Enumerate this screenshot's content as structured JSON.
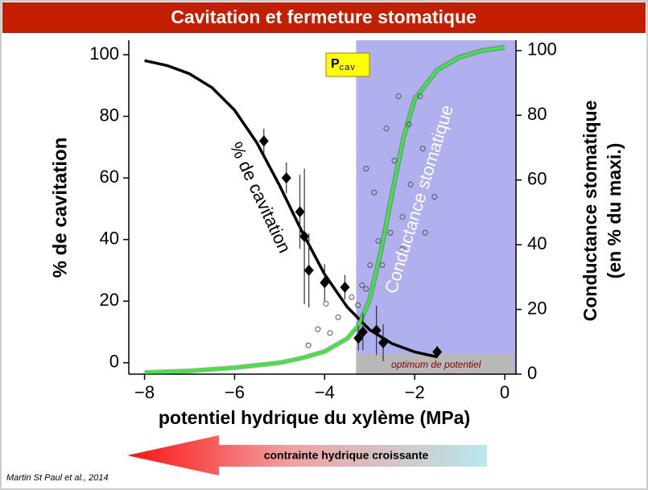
{
  "chart_data": {
    "type": "line",
    "title": "Cavitation et fermeture stomatique",
    "xlabel": "potentiel hydrique du xylème (MPa)",
    "ylabel": "% de cavitation",
    "y2label": [
      "Conductance stomatique",
      "(en % du maxi.)"
    ],
    "xlim": [
      -8.35,
      0.25
    ],
    "ylim": [
      -3.7,
      104.7
    ],
    "y2lim": [
      0,
      103.2
    ],
    "xticks": [
      {
        "value": -8,
        "label": "−8"
      },
      {
        "value": -6,
        "label": "−6"
      },
      {
        "value": -4,
        "label": "−4"
      },
      {
        "value": -2,
        "label": "−2"
      },
      0
    ],
    "yticks": [
      0,
      20,
      40,
      60,
      80,
      100
    ],
    "y2ticks": [
      0,
      20,
      40,
      60,
      80,
      100
    ],
    "shaded_region": {
      "x": [
        -3.3,
        0.25
      ],
      "color": "#b0b0ee"
    },
    "series": [
      {
        "type": "line",
        "color": "#000000",
        "axis": "y",
        "x": [
          -8,
          -7.5,
          -7,
          -6.5,
          -6,
          -5.5,
          -5,
          -4.5,
          -4,
          -3.5,
          -3,
          -2.5,
          -2,
          -1.5
        ],
        "values": [
          98.1,
          96.5,
          93.8,
          89.3,
          82,
          71.3,
          57.5,
          42.5,
          28.7,
          18.1,
          10.7,
          6.2,
          3.5,
          1.9
        ]
      },
      {
        "type": "line",
        "color": "#33ee33",
        "axis": "y2",
        "x": [
          -8,
          -7,
          -6,
          -5,
          -4.5,
          -4,
          -3.5,
          -3.25,
          -3,
          -2.75,
          -2.5,
          -2.25,
          -2,
          -1.5,
          -1,
          -0.5,
          0
        ],
        "values": [
          0.5,
          1,
          2,
          3.5,
          5,
          7,
          11,
          15,
          23,
          38,
          56,
          73,
          85,
          94,
          98,
          100,
          101
        ]
      },
      {
        "type": "scatter",
        "marker": "diamond",
        "color": "#000000",
        "axis": "y",
        "x": [
          -5.35,
          -4.85,
          -4.55,
          -4.45,
          -4.35,
          -4.0,
          -3.55,
          -3.25,
          -3.15,
          -2.85,
          -2.7,
          -1.5
        ],
        "values": [
          72,
          60,
          49,
          41,
          30,
          26,
          24.5,
          8,
          10,
          10.5,
          6.5,
          3.5
        ],
        "errors": [
          4,
          5,
          12,
          22,
          12,
          6,
          4,
          4,
          6,
          8,
          6,
          2
        ]
      },
      {
        "type": "scatter",
        "marker": "circle",
        "color": "#555555",
        "axis": "y2",
        "x": [
          -1.88,
          -2.36,
          -2.63,
          -3.08,
          -2.9,
          -2.45,
          -2.09,
          -1.56,
          -2.27,
          -2.54,
          -2.81,
          -2.99,
          -3.17,
          -3.26,
          -3.4,
          -3.97,
          -4.15,
          -4.36,
          -3.88,
          -3.7,
          -1.82,
          -2.13,
          -1.77,
          -2.72,
          -3.08,
          -2.27
        ],
        "values": [
          85.9,
          85.9,
          75.9,
          63.5,
          56.1,
          66,
          58.6,
          54.8,
          48.6,
          43.7,
          41.2,
          33.7,
          27.5,
          21.3,
          23.8,
          21.8,
          13.9,
          8.9,
          12.7,
          17.6,
          69.7,
          77.2,
          43.7,
          33.7,
          26.3,
          38.7
        ]
      }
    ],
    "annotations": {
      "cavitation_curve": "% de cavitation",
      "conductance_curve": "Conductance stomatique",
      "pcav": "P",
      "pcav_sub": "cav",
      "optimum": "optimum de potentiel",
      "arrow": "contrainte hydrique croissante",
      "source": "Martin St Paul et al., 2014"
    }
  }
}
